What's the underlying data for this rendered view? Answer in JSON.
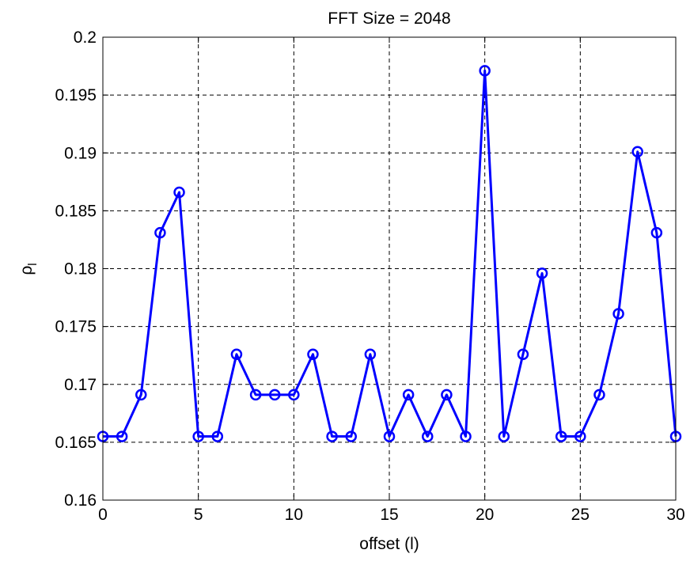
{
  "chart_data": {
    "type": "line",
    "title": "FFT Size = 2048",
    "xlabel": "offset (l)",
    "ylabel": "ρ",
    "ylabel_subscript": "l",
    "xlim": [
      0,
      30
    ],
    "ylim": [
      0.16,
      0.2
    ],
    "xticks": [
      "0",
      "5",
      "10",
      "15",
      "20",
      "25",
      "30"
    ],
    "yticks": [
      "0.16",
      "0.165",
      "0.17",
      "0.175",
      "0.18",
      "0.185",
      "0.19",
      "0.195",
      "0.2"
    ],
    "grid": true,
    "marker": "circle",
    "series": [
      {
        "color": "#0000ff",
        "x": [
          0,
          1,
          2,
          3,
          4,
          5,
          6,
          7,
          8,
          9,
          10,
          11,
          12,
          13,
          14,
          15,
          16,
          17,
          18,
          19,
          20,
          21,
          22,
          23,
          24,
          25,
          26,
          27,
          28,
          29,
          30
        ],
        "y": [
          0.1655,
          0.1655,
          0.1691,
          0.1831,
          0.1866,
          0.1655,
          0.1655,
          0.1726,
          0.1691,
          0.1691,
          0.1691,
          0.1726,
          0.1655,
          0.1655,
          0.1726,
          0.1655,
          0.1691,
          0.1655,
          0.1691,
          0.1655,
          0.1971,
          0.1655,
          0.1726,
          0.1796,
          0.1655,
          0.1655,
          0.1691,
          0.1761,
          0.1901,
          0.1831,
          0.1655
        ]
      }
    ]
  }
}
